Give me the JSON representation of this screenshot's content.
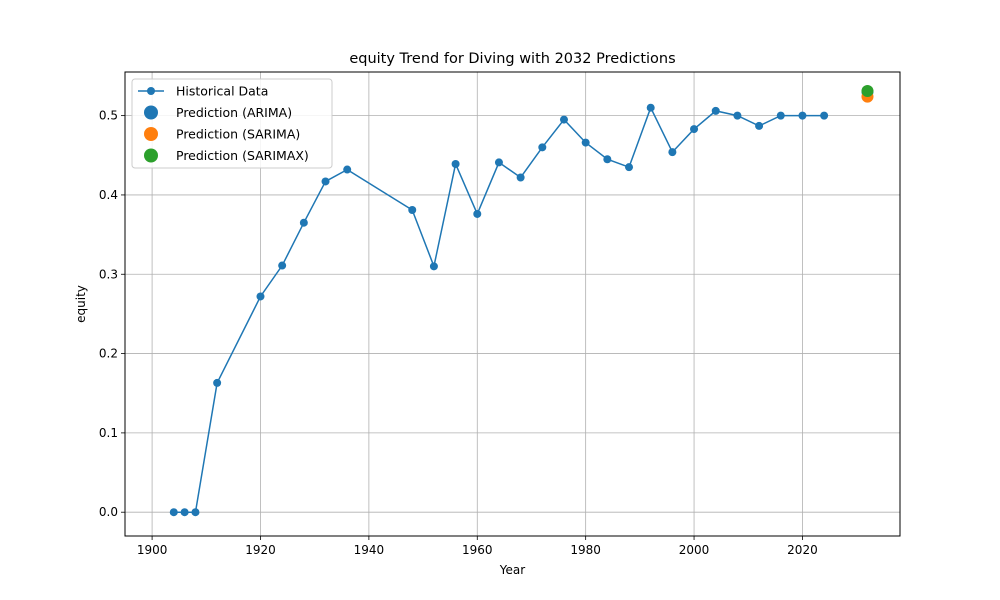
{
  "chart_data": {
    "type": "line",
    "title": "equity Trend for Diving with 2032 Predictions",
    "xlabel": "Year",
    "ylabel": "equity",
    "xlim": [
      1895,
      2038
    ],
    "ylim": [
      -0.03,
      0.555
    ],
    "grid": true,
    "legend_position": "top-left",
    "x_ticks": [
      1900,
      1920,
      1940,
      1960,
      1980,
      2000,
      2020
    ],
    "y_ticks": [
      0.0,
      0.1,
      0.2,
      0.3,
      0.4,
      0.5
    ],
    "x_tick_labels": [
      "1900",
      "1920",
      "1940",
      "1960",
      "1980",
      "2000",
      "2020"
    ],
    "y_tick_labels": [
      "0.0",
      "0.1",
      "0.2",
      "0.3",
      "0.4",
      "0.5"
    ],
    "series": [
      {
        "name": "Historical Data",
        "kind": "line",
        "color": "#1f77b4",
        "x": [
          1904,
          1906,
          1908,
          1912,
          1920,
          1924,
          1928,
          1932,
          1936,
          1948,
          1952,
          1956,
          1960,
          1964,
          1968,
          1972,
          1976,
          1980,
          1984,
          1988,
          1992,
          1996,
          2000,
          2004,
          2008,
          2012,
          2016,
          2020,
          2024
        ],
        "y": [
          0.0,
          0.0,
          0.0,
          0.163,
          0.272,
          0.311,
          0.365,
          0.417,
          0.432,
          0.381,
          0.31,
          0.439,
          0.376,
          0.441,
          0.422,
          0.46,
          0.495,
          0.466,
          0.445,
          0.435,
          0.51,
          0.454,
          0.483,
          0.506,
          0.5,
          0.487,
          0.5,
          0.5,
          0.5
        ]
      },
      {
        "name": "Prediction (ARIMA)",
        "kind": "point",
        "color": "#1f77b4",
        "x": [
          2032
        ],
        "y": [
          0.53
        ]
      },
      {
        "name": "Prediction (SARIMA)",
        "kind": "point",
        "color": "#ff7f0e",
        "x": [
          2032
        ],
        "y": [
          0.524
        ]
      },
      {
        "name": "Prediction (SARIMAX)",
        "kind": "point",
        "color": "#2ca02c",
        "x": [
          2032
        ],
        "y": [
          0.531
        ]
      }
    ]
  }
}
